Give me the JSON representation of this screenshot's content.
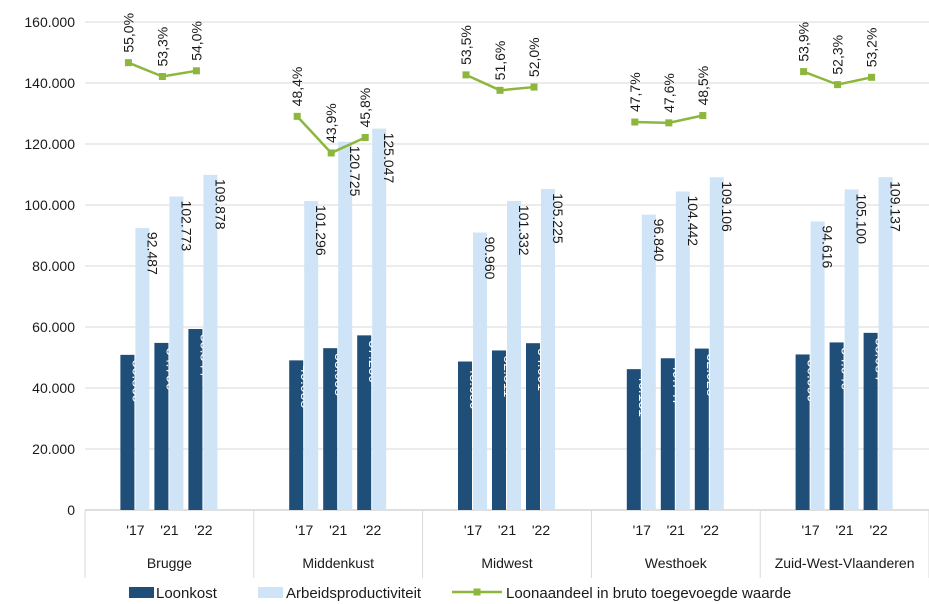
{
  "chart_data": {
    "type": "bar",
    "groups": [
      "Brugge",
      "Middenkust",
      "Midwest",
      "Westhoek",
      "Zuid-West-Vlaanderen"
    ],
    "categories": [
      "'17",
      "'21",
      "'22"
    ],
    "ylim": [
      0,
      160000
    ],
    "yticks": [
      "0",
      "20.000",
      "40.000",
      "60.000",
      "80.000",
      "100.000",
      "120.000",
      "140.000",
      "160.000"
    ],
    "grid": "horizontal",
    "legend_position": "bottom",
    "series": [
      {
        "name": "Loonkost",
        "kind": "bar",
        "color": "#1f4e79",
        "values": [
          [
            50869,
            54790,
            59344
          ],
          [
            49058,
            53058,
            57259
          ],
          [
            48686,
            52311,
            54691
          ],
          [
            46181,
            49747,
            52928
          ],
          [
            50999,
            54940,
            58084
          ]
        ],
        "labels": [
          [
            "50.869",
            "54.790",
            "59.344"
          ],
          [
            "49.058",
            "53.058",
            "57.259"
          ],
          [
            "48.686",
            "52.311",
            "54.691"
          ],
          [
            "46.181",
            "49.747",
            "52.928"
          ],
          [
            "50.999",
            "54.940",
            "58.084"
          ]
        ]
      },
      {
        "name": "Arbeidsproductiviteit",
        "kind": "bar",
        "color": "#cfe4f7",
        "values": [
          [
            92487,
            102773,
            109878
          ],
          [
            101296,
            120725,
            125047
          ],
          [
            90960,
            101332,
            105225
          ],
          [
            96840,
            104442,
            109106
          ],
          [
            94616,
            105100,
            109137
          ]
        ],
        "labels": [
          [
            "92.487",
            "102.773",
            "109.878"
          ],
          [
            "101.296",
            "120.725",
            "125.047"
          ],
          [
            "90.960",
            "101.332",
            "105.225"
          ],
          [
            "96.840",
            "104.442",
            "109.106"
          ],
          [
            "94.616",
            "105.100",
            "109.137"
          ]
        ]
      },
      {
        "name": "Loonaandeel in bruto toegevoegde waarde",
        "kind": "line",
        "color": "#8cb63c",
        "values": [
          [
            55.0,
            53.3,
            54.0
          ],
          [
            48.4,
            43.9,
            45.8
          ],
          [
            53.5,
            51.6,
            52.0
          ],
          [
            47.7,
            47.6,
            48.5
          ],
          [
            53.9,
            52.3,
            53.2
          ]
        ],
        "labels": [
          [
            "55,0%",
            "53,3%",
            "54,0%"
          ],
          [
            "48,4%",
            "43,9%",
            "45,8%"
          ],
          [
            "53,5%",
            "51,6%",
            "52,0%"
          ],
          [
            "47,7%",
            "47,6%",
            "48,5%"
          ],
          [
            "53,9%",
            "52,3%",
            "53,2%"
          ]
        ],
        "secondary_ylim": [
          0,
          60
        ]
      }
    ],
    "title": "",
    "xlabel": "",
    "ylabel": ""
  }
}
